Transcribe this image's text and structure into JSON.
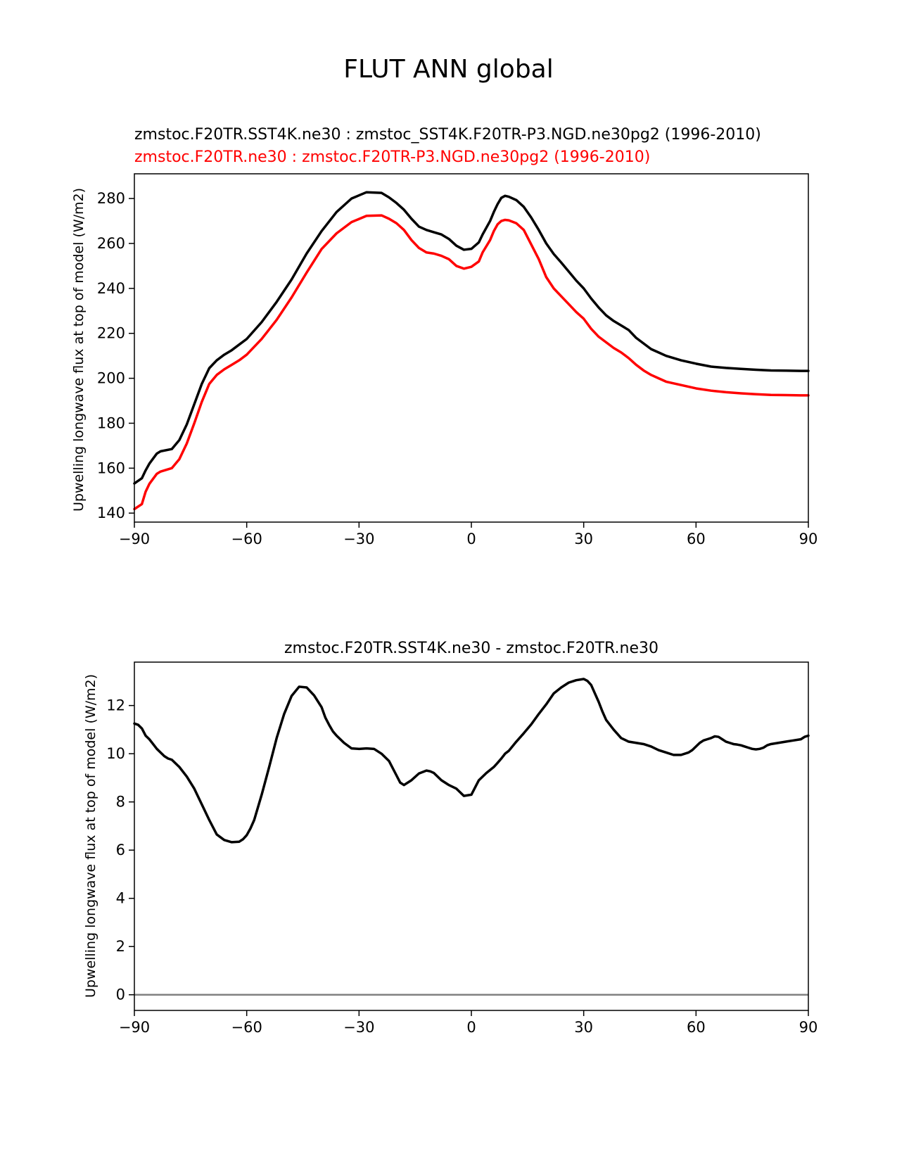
{
  "figure_title": "FLUT ANN global",
  "colors": {
    "series_test": "#000000",
    "series_ref": "#ff0000",
    "zero_line": "#808080",
    "axes": "#000000"
  },
  "chart_data": [
    {
      "type": "line",
      "title_lines": [
        {
          "text": "zmstoc.F20TR.SST4K.ne30 : zmstoc_SST4K.F20TR-P3.NGD.ne30pg2 (1996-2010)",
          "color": "#000000"
        },
        {
          "text": "zmstoc.F20TR.ne30 : zmstoc.F20TR-P3.NGD.ne30pg2 (1996-2010)",
          "color": "#ff0000"
        }
      ],
      "xlabel": "",
      "ylabel": "Upwelling longwave flux at top of model (W/m2)",
      "xlim": [
        -90,
        90
      ],
      "ylim": [
        136,
        291
      ],
      "xticks": [
        -90,
        -60,
        -30,
        0,
        30,
        60,
        90
      ],
      "xtick_labels": [
        "−90",
        "−60",
        "−30",
        "0",
        "30",
        "60",
        "90"
      ],
      "yticks": [
        140,
        160,
        180,
        200,
        220,
        240,
        260,
        280
      ],
      "ytick_labels": [
        "140",
        "160",
        "180",
        "200",
        "220",
        "240",
        "260",
        "280"
      ],
      "series": [
        {
          "name": "zmstoc.F20TR.SST4K.ne30",
          "color": "#000000",
          "x": [
            -90,
            -88,
            -87,
            -86,
            -84,
            -83,
            -80,
            -78,
            -76,
            -74,
            -72,
            -70,
            -68,
            -66,
            -64,
            -62,
            -60,
            -56,
            -52,
            -48,
            -44,
            -40,
            -36,
            -32,
            -28,
            -24,
            -22,
            -20,
            -18,
            -16,
            -14,
            -12,
            -10,
            -8,
            -6,
            -4,
            -2,
            0,
            2,
            3,
            5,
            6,
            7,
            8,
            9,
            10,
            12,
            14,
            16,
            18,
            20,
            22,
            24,
            26,
            28,
            30,
            32,
            34,
            36,
            38,
            40,
            42,
            44,
            46,
            48,
            50,
            52,
            56,
            60,
            64,
            68,
            72,
            76,
            80,
            84,
            88,
            90
          ],
          "values": [
            153.2,
            155.5,
            159,
            162,
            166.5,
            167.5,
            168.5,
            172.5,
            179.5,
            188.5,
            197.5,
            204.5,
            208,
            210.5,
            212.5,
            215,
            217.5,
            225,
            234,
            244,
            255.5,
            265.5,
            274,
            280,
            282.8,
            282.5,
            280.5,
            278,
            275,
            271,
            267.5,
            266,
            265,
            264,
            262,
            259,
            257.2,
            257.6,
            260.5,
            264,
            270,
            274,
            277.5,
            280.3,
            281.2,
            280.8,
            279.3,
            276.3,
            271.5,
            266,
            260,
            255.3,
            251.5,
            247.5,
            243.5,
            240,
            235.5,
            231.5,
            228,
            225.5,
            223.5,
            221.5,
            218,
            215.5,
            213,
            211.5,
            210,
            208,
            206.5,
            205.2,
            204.6,
            204.2,
            203.8,
            203.5,
            203.4,
            203.3,
            203.3
          ]
        },
        {
          "name": "zmstoc.F20TR.ne30",
          "color": "#ff0000",
          "x": [
            -90,
            -88,
            -87,
            -86,
            -84,
            -83,
            -80,
            -78,
            -76,
            -74,
            -72,
            -70,
            -68,
            -66,
            -64,
            -62,
            -60,
            -56,
            -52,
            -48,
            -44,
            -40,
            -36,
            -32,
            -28,
            -24,
            -22,
            -20,
            -18,
            -16,
            -14,
            -12,
            -10,
            -8,
            -6,
            -4,
            -2,
            0,
            2,
            3,
            5,
            6,
            7,
            8,
            9,
            10,
            12,
            14,
            16,
            18,
            20,
            22,
            24,
            26,
            28,
            30,
            32,
            34,
            36,
            38,
            40,
            42,
            44,
            46,
            48,
            50,
            52,
            56,
            60,
            64,
            68,
            72,
            76,
            80,
            84,
            88,
            90
          ],
          "values": [
            141.8,
            144,
            149.5,
            153,
            157.5,
            158.5,
            160,
            164,
            171,
            180,
            189.5,
            197.5,
            201.5,
            204,
            206,
            208,
            210.5,
            217.5,
            226,
            236,
            247,
            257.5,
            264.5,
            269.5,
            272.3,
            272.5,
            271,
            269,
            266,
            261.5,
            258,
            256,
            255.5,
            254.5,
            253,
            250,
            248.8,
            249.6,
            252,
            256,
            261.5,
            265.5,
            268.5,
            270,
            270.5,
            270.3,
            269,
            266,
            259.5,
            253,
            245,
            240,
            236.5,
            233,
            229.5,
            226.5,
            222,
            218.5,
            216,
            213.5,
            211.5,
            209,
            206,
            203.5,
            201.5,
            200,
            198.5,
            197,
            195.5,
            194.5,
            193.8,
            193.3,
            192.9,
            192.6,
            192.5,
            192.4,
            192.4
          ]
        }
      ]
    },
    {
      "type": "line",
      "title_lines": [
        {
          "text": "zmstoc.F20TR.SST4K.ne30 - zmstoc.F20TR.ne30",
          "color": "#000000"
        }
      ],
      "xlabel": "",
      "ylabel": "Upwelling longwave flux at top of model (W/m2)",
      "xlim": [
        -90,
        90
      ],
      "ylim": [
        -0.65,
        13.8
      ],
      "xticks": [
        -90,
        -60,
        -30,
        0,
        30,
        60,
        90
      ],
      "xtick_labels": [
        "−90",
        "−60",
        "−30",
        "0",
        "30",
        "60",
        "90"
      ],
      "yticks": [
        0,
        2,
        4,
        6,
        8,
        10,
        12
      ],
      "ytick_labels": [
        "0",
        "2",
        "4",
        "6",
        "8",
        "10",
        "12"
      ],
      "zero_line": 0,
      "series": [
        {
          "name": "zmstoc.F20TR.SST4K.ne30 - zmstoc.F20TR.ne30",
          "color": "#000000",
          "x": [
            -90,
            -89,
            -88,
            -87,
            -86,
            -85,
            -84,
            -83,
            -82,
            -81,
            -80,
            -79,
            -78,
            -76,
            -74,
            -72,
            -70,
            -68,
            -66,
            -64,
            -62,
            -61,
            -60,
            -59,
            -58,
            -56,
            -54,
            -52,
            -50,
            -48,
            -46,
            -44,
            -42,
            -40,
            -39,
            -38,
            -37,
            -36,
            -34,
            -32,
            -30,
            -28,
            -26,
            -24,
            -22,
            -20,
            -19,
            -18,
            -16,
            -14,
            -12,
            -11,
            -10,
            -8,
            -6,
            -4,
            -2,
            0,
            2,
            4,
            6,
            7,
            8,
            9,
            10,
            12,
            14,
            16,
            18,
            20,
            22,
            24,
            26,
            28,
            30,
            31,
            32,
            33,
            34,
            35,
            36,
            38,
            40,
            42,
            44,
            46,
            48,
            50,
            52,
            54,
            56,
            58,
            59,
            60,
            61,
            62,
            63,
            64,
            65,
            66,
            67,
            68,
            69,
            70,
            71,
            72,
            73,
            74,
            75,
            76,
            77,
            78,
            79,
            80,
            82,
            84,
            86,
            88,
            89,
            90
          ],
          "values": [
            11.25,
            11.2,
            11.05,
            10.75,
            10.6,
            10.4,
            10.2,
            10.05,
            9.9,
            9.8,
            9.75,
            9.6,
            9.45,
            9.05,
            8.55,
            7.9,
            7.25,
            6.65,
            6.42,
            6.33,
            6.35,
            6.45,
            6.62,
            6.9,
            7.25,
            8.3,
            9.45,
            10.65,
            11.65,
            12.4,
            12.78,
            12.75,
            12.42,
            11.93,
            11.5,
            11.2,
            10.93,
            10.75,
            10.45,
            10.22,
            10.2,
            10.22,
            10.2,
            10.0,
            9.7,
            9.1,
            8.8,
            8.7,
            8.9,
            9.18,
            9.3,
            9.27,
            9.2,
            8.9,
            8.7,
            8.55,
            8.25,
            8.3,
            8.9,
            9.2,
            9.45,
            9.62,
            9.8,
            10.0,
            10.12,
            10.5,
            10.85,
            11.22,
            11.65,
            12.05,
            12.5,
            12.75,
            12.95,
            13.05,
            13.1,
            13.02,
            12.85,
            12.5,
            12.15,
            11.75,
            11.4,
            11.0,
            10.65,
            10.5,
            10.45,
            10.4,
            10.3,
            10.15,
            10.05,
            9.95,
            9.95,
            10.05,
            10.15,
            10.3,
            10.45,
            10.55,
            10.6,
            10.65,
            10.72,
            10.7,
            10.6,
            10.5,
            10.45,
            10.4,
            10.38,
            10.35,
            10.3,
            10.25,
            10.2,
            10.18,
            10.2,
            10.25,
            10.35,
            10.4,
            10.45,
            10.5,
            10.55,
            10.6,
            10.7,
            10.75
          ]
        }
      ]
    }
  ]
}
